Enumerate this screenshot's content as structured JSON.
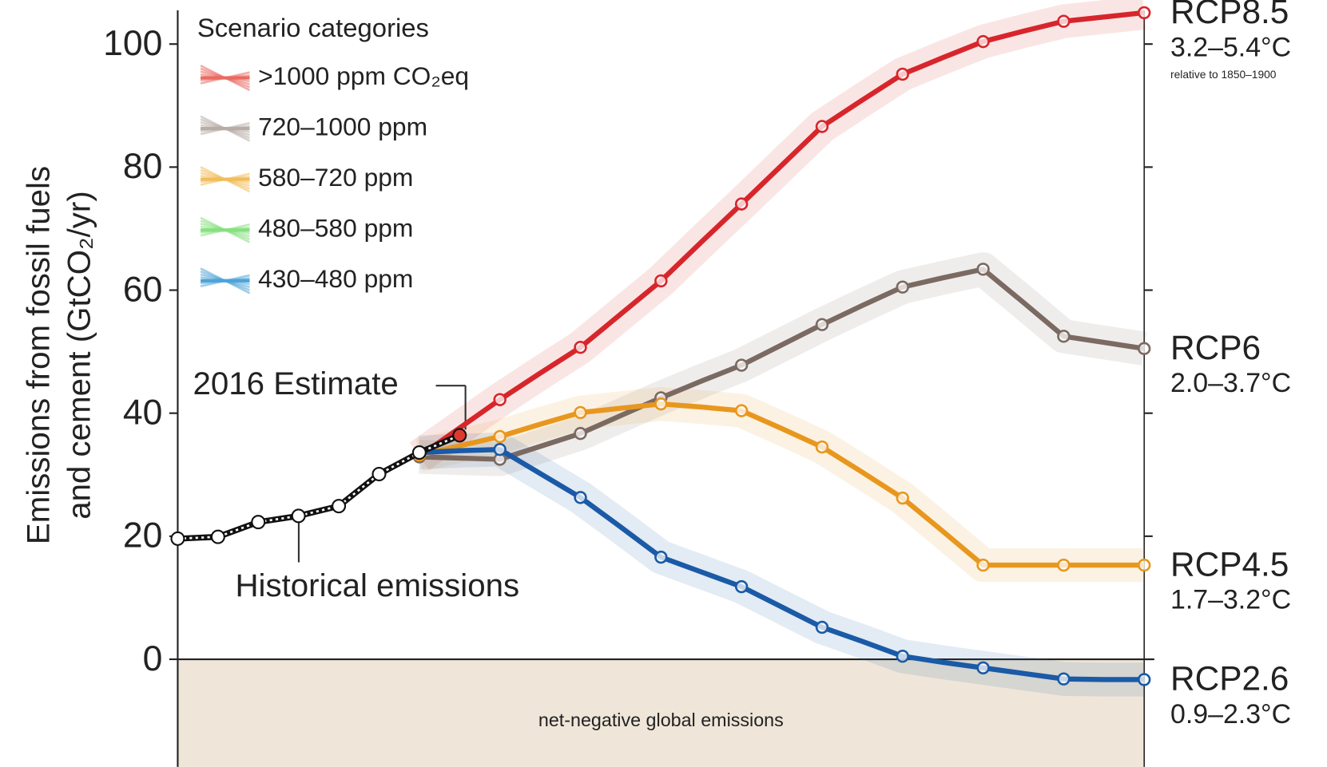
{
  "chart_data": {
    "type": "line",
    "y_label": [
      "Emissions from fossil fuels",
      "and cement (GtCO₂/yr)"
    ],
    "categories": [
      null,
      null,
      null,
      null,
      null,
      null,
      null,
      null,
      null,
      null,
      null,
      null,
      null,
      null,
      null,
      null,
      null,
      null,
      null,
      null,
      null,
      null,
      null,
      null,
      null
    ],
    "ylim": [
      -17.5,
      105.5
    ],
    "yticks": [
      0,
      20,
      40,
      60,
      80,
      100
    ],
    "negative_region_label": "net-negative global emissions",
    "negative_region_color": "#efe6d9",
    "estimate_label": "2016 Estimate",
    "estimate_color": "#e03a2f",
    "temperature_note": "relative to 1850–1900",
    "legend_title": "Scenario categories",
    "scenario_categories": [
      {
        "name": ">1000 ppm CO₂eq",
        "color": "#ea6a62"
      },
      {
        "name": "720–1000 ppm",
        "color": "#b7aca6"
      },
      {
        "name": "580–720 ppm",
        "color": "#f1bd5a"
      },
      {
        "name": "480–580 ppm",
        "color": "#86e07e"
      },
      {
        "name": "430–480 ppm",
        "color": "#4ea3d8"
      }
    ],
    "historical": {
      "name": "Historical emissions",
      "color": "#111111",
      "values": [
        19.6,
        19.9,
        22.3,
        23.3,
        24.9,
        30.1,
        33.6,
        36.4,
        null,
        null,
        null,
        null,
        null,
        null,
        null,
        null,
        null,
        null,
        null,
        null,
        null,
        null,
        null,
        null,
        null
      ]
    },
    "series": [
      {
        "name": "RCP8.5",
        "temperature": "3.2–5.4°C",
        "color": "#d7262b",
        "values": [
          null,
          null,
          null,
          null,
          null,
          null,
          33.0,
          37.6,
          42.2,
          46.5,
          50.7,
          56.1,
          61.5,
          67.8,
          74.0,
          80.3,
          86.6,
          90.9,
          95.1,
          97.8,
          100.4,
          102.1,
          103.7,
          104.4,
          105.1
        ]
      },
      {
        "name": "RCP6",
        "temperature": "2.0–3.7°C",
        "color": "#7b6a62",
        "values": [
          null,
          null,
          null,
          null,
          null,
          null,
          32.9,
          32.7,
          32.5,
          34.6,
          36.7,
          39.6,
          42.5,
          45.2,
          47.8,
          51.1,
          54.4,
          57.5,
          60.5,
          62.0,
          63.4,
          58.0,
          52.5,
          51.5,
          50.5
        ]
      },
      {
        "name": "RCP4.5",
        "temperature": "1.7–3.2°C",
        "color": "#e8971e",
        "values": [
          null,
          null,
          null,
          null,
          null,
          null,
          33.2,
          34.7,
          36.2,
          38.2,
          40.1,
          40.8,
          41.5,
          41.0,
          40.4,
          37.5,
          34.5,
          30.4,
          26.2,
          20.8,
          15.3,
          15.3,
          15.3,
          15.3,
          15.3
        ]
      },
      {
        "name": "RCP2.6",
        "temperature": "0.9–2.3°C",
        "color": "#1a5aa6",
        "values": [
          null,
          null,
          null,
          null,
          null,
          null,
          33.6,
          33.9,
          34.1,
          30.2,
          26.3,
          21.5,
          16.6,
          14.2,
          11.8,
          8.5,
          5.2,
          2.9,
          0.5,
          -0.5,
          -1.4,
          -2.3,
          -3.2,
          -3.3,
          -3.3
        ]
      }
    ]
  }
}
